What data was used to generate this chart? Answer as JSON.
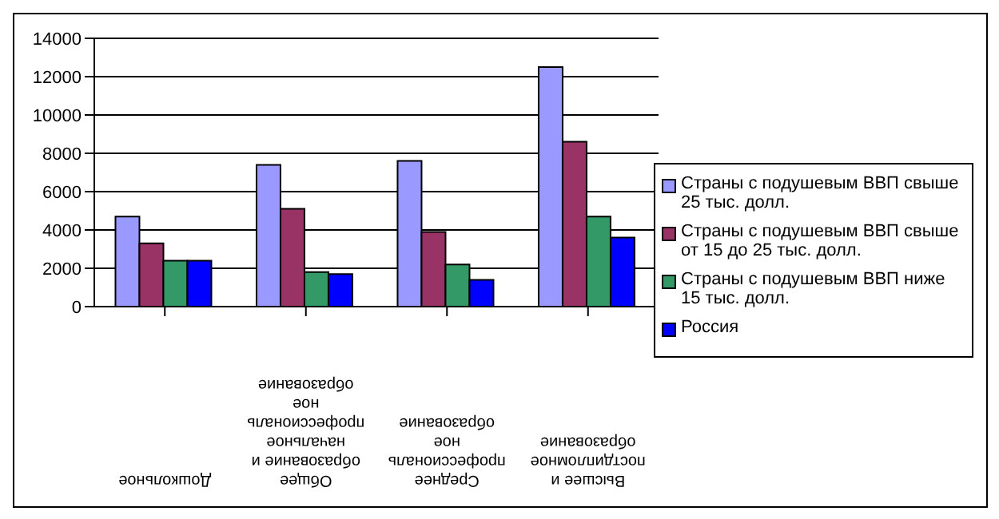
{
  "chart_data": {
    "type": "bar",
    "categories": [
      "Дошкольное",
      "Общее образование и начальное профессиональное образование",
      "Среднее профессиональное образование",
      "Высшее и постдипломное образование"
    ],
    "series": [
      {
        "name": "Страны с подушевым ВВП свыше 25 тыс. долл.",
        "color": "#9999ff",
        "values": [
          4700,
          7400,
          7600,
          12500
        ]
      },
      {
        "name": "Страны с подушевым ВВП свыше от 15 до 25  тыс. долл.",
        "color": "#993366",
        "values": [
          3300,
          5100,
          3900,
          8600
        ]
      },
      {
        "name": "Страны с подушевым ВВП ниже 15 тыс. долл.",
        "color": "#339966",
        "values": [
          2400,
          1800,
          2200,
          4700
        ]
      },
      {
        "name": "Россия",
        "color": "#0000ff",
        "values": [
          2400,
          1700,
          1400,
          3600
        ]
      }
    ],
    "ylim": [
      0,
      14000
    ],
    "yticks": [
      0,
      2000,
      4000,
      6000,
      8000,
      10000,
      12000,
      14000
    ],
    "grid": "y",
    "legend": "right"
  }
}
